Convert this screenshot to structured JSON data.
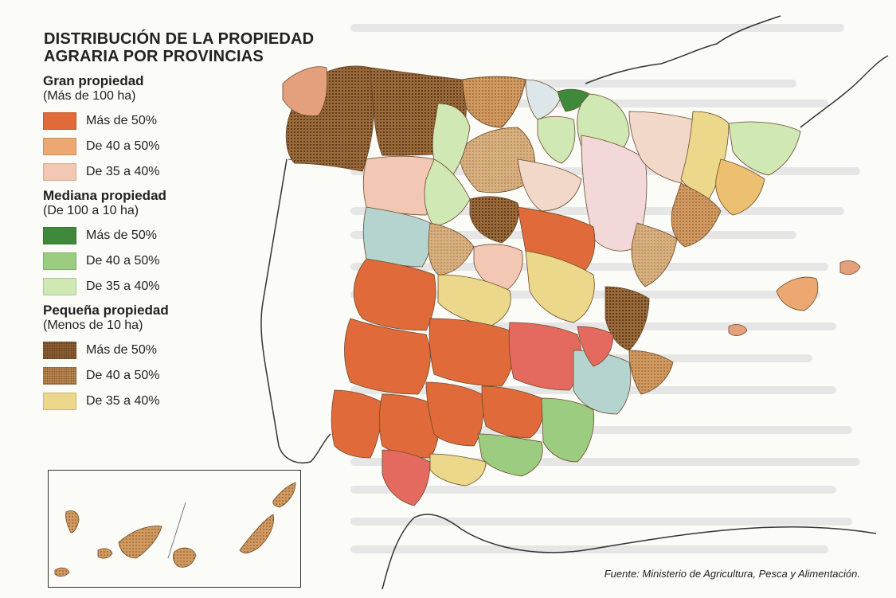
{
  "title": {
    "line1": "DISTRIBUCIÓN DE LA PROPIEDAD",
    "line2": "AGRARIA POR PROVINCIAS"
  },
  "legend": [
    {
      "heading": "Gran propiedad",
      "subheading": "(Más de 100 ha)",
      "items": [
        {
          "label": "Más de 50%",
          "color": "#e06a3a",
          "dotted": false
        },
        {
          "label": "De 40 a 50%",
          "color": "#eca870",
          "dotted": false
        },
        {
          "label": "De 35 a 40%",
          "color": "#f2c8b4",
          "dotted": false
        }
      ]
    },
    {
      "heading": "Mediana propiedad",
      "subheading": "(De 100 a 10 ha)",
      "items": [
        {
          "label": "Más de 50%",
          "color": "#3e8a3a",
          "dotted": false
        },
        {
          "label": "De 40 a 50%",
          "color": "#9ccc80",
          "dotted": false
        },
        {
          "label": "De 35 a 40%",
          "color": "#cfe8b4",
          "dotted": false
        }
      ]
    },
    {
      "heading": "Pequeña propiedad",
      "subheading": "(Menos de 10 ha)",
      "items": [
        {
          "label": "Más de 50%",
          "color": "#8a5a30",
          "dotted": true
        },
        {
          "label": "De 40 a 50%",
          "color": "#c8925a",
          "dotted": true
        },
        {
          "label": "De 35 a 40%",
          "color": "#ecd88a",
          "dotted": false
        }
      ]
    }
  ],
  "source": "Fuente: Ministerio de Agricultura, Pesca y Alimentación."
}
